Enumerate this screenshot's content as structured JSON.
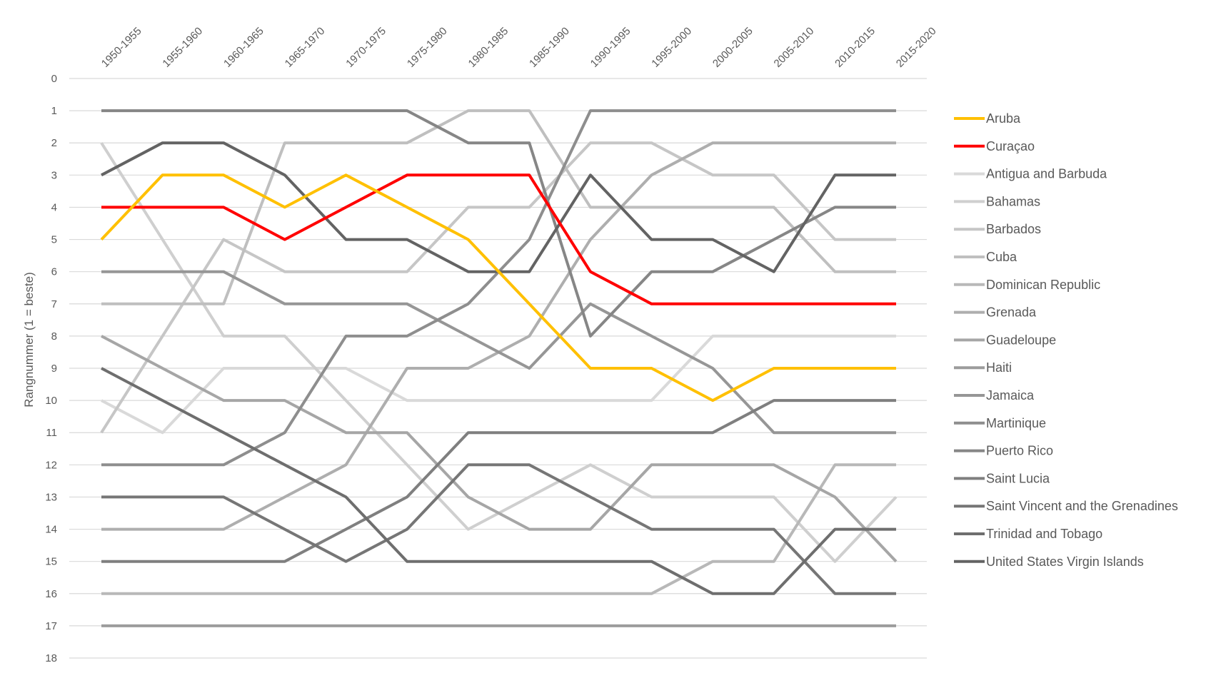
{
  "chart_data": {
    "type": "line",
    "title": "",
    "ylabel": "Rangnummer (1 = beste)",
    "xlabel": "",
    "ylim": [
      0,
      18
    ],
    "y_reversed": true,
    "grid": true,
    "legend_position": "right",
    "x": [
      "1950-1955",
      "1955-1960",
      "1960-1965",
      "1965-1970",
      "1970-1975",
      "1975-1980",
      "1980-1985",
      "1985-1990",
      "1990-1995",
      "1995-2000",
      "2000-2005",
      "2005-2010",
      "2010-2015",
      "2015-2020"
    ],
    "y_ticks": [
      "0",
      "1",
      "2",
      "3",
      "4",
      "5",
      "6",
      "7",
      "8",
      "9",
      "10",
      "11",
      "12",
      "13",
      "14",
      "15",
      "16",
      "17",
      "18"
    ],
    "series": [
      {
        "name": "Aruba",
        "color": "#FFC000",
        "values": [
          5,
          3,
          3,
          4,
          3,
          4,
          5,
          7,
          9,
          9,
          10,
          9,
          9,
          9
        ]
      },
      {
        "name": "Curaçao",
        "color": "#FF0000",
        "values": [
          4,
          4,
          4,
          5,
          4,
          3,
          3,
          3,
          6,
          7,
          7,
          7,
          7,
          7
        ]
      },
      {
        "name": "Antigua and Barbuda",
        "color": "#D9D9D9",
        "values": [
          10,
          11,
          9,
          9,
          9,
          10,
          10,
          10,
          10,
          10,
          8,
          8,
          8,
          8
        ]
      },
      {
        "name": "Bahamas",
        "color": "#CFCFCF",
        "values": [
          2,
          5,
          8,
          8,
          10,
          12,
          14,
          13,
          12,
          13,
          13,
          13,
          15,
          13
        ]
      },
      {
        "name": "Barbados",
        "color": "#C6C6C6",
        "values": [
          11,
          8,
          5,
          6,
          6,
          6,
          4,
          4,
          2,
          2,
          3,
          3,
          5,
          5
        ]
      },
      {
        "name": "Cuba",
        "color": "#BFBFBF",
        "values": [
          7,
          7,
          7,
          2,
          2,
          2,
          1,
          1,
          4,
          4,
          4,
          4,
          6,
          6
        ]
      },
      {
        "name": "Dominican Republic",
        "color": "#B8B8B8",
        "values": [
          16,
          16,
          16,
          16,
          16,
          16,
          16,
          16,
          16,
          16,
          15,
          15,
          12,
          12
        ]
      },
      {
        "name": "Grenada",
        "color": "#AEAEAE",
        "values": [
          14,
          14,
          14,
          13,
          12,
          9,
          9,
          8,
          5,
          3,
          2,
          2,
          2,
          2
        ]
      },
      {
        "name": "Guadeloupe",
        "color": "#A6A6A6",
        "values": [
          8,
          9,
          10,
          10,
          11,
          11,
          13,
          14,
          14,
          12,
          12,
          12,
          13,
          15
        ]
      },
      {
        "name": "Haiti",
        "color": "#9C9C9C",
        "values": [
          17,
          17,
          17,
          17,
          17,
          17,
          17,
          17,
          17,
          17,
          17,
          17,
          17,
          17
        ]
      },
      {
        "name": "Jamaica",
        "color": "#969696",
        "values": [
          6,
          6,
          6,
          7,
          7,
          7,
          8,
          9,
          7,
          8,
          9,
          11,
          11,
          11
        ]
      },
      {
        "name": "Martinique",
        "color": "#8E8E8E",
        "values": [
          12,
          12,
          12,
          11,
          8,
          8,
          7,
          5,
          1,
          1,
          1,
          1,
          1,
          1
        ]
      },
      {
        "name": "Puerto Rico",
        "color": "#868686",
        "values": [
          1,
          1,
          1,
          1,
          1,
          1,
          2,
          2,
          8,
          6,
          6,
          5,
          4,
          4
        ]
      },
      {
        "name": "Saint Lucia",
        "color": "#7F7F7F",
        "values": [
          15,
          15,
          15,
          15,
          14,
          13,
          11,
          11,
          11,
          11,
          11,
          10,
          10,
          10
        ]
      },
      {
        "name": "Saint Vincent and the Grenadines",
        "color": "#767676",
        "values": [
          13,
          13,
          13,
          14,
          15,
          14,
          12,
          12,
          13,
          14,
          14,
          14,
          16,
          16
        ]
      },
      {
        "name": "Trinidad and Tobago",
        "color": "#6E6E6E",
        "values": [
          9,
          10,
          11,
          12,
          13,
          15,
          15,
          15,
          15,
          15,
          16,
          16,
          14,
          14
        ]
      },
      {
        "name": "United States Virgin Islands",
        "color": "#636363",
        "values": [
          3,
          2,
          2,
          3,
          5,
          5,
          6,
          6,
          3,
          5,
          5,
          6,
          3,
          3
        ]
      }
    ]
  }
}
